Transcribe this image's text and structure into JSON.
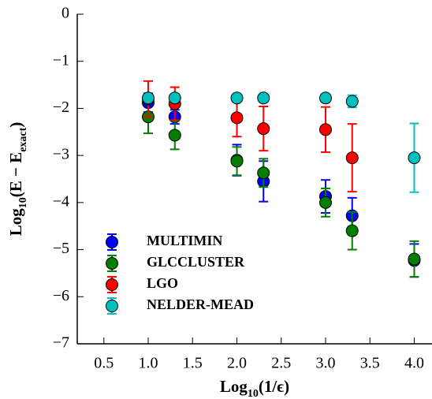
{
  "chart_data": {
    "type": "scatter",
    "xlabel": [
      "Log",
      "10",
      "(1/ϵ)"
    ],
    "ylabel": [
      "Log",
      "10",
      "(E − E",
      "exact",
      ")"
    ],
    "x": [
      1.0,
      1.3,
      2.0,
      2.3,
      3.0,
      3.3,
      4.0
    ],
    "series": [
      {
        "name": "MULTIMIN",
        "color": "#0000ff",
        "values": [
          -1.88,
          -2.18,
          -3.1,
          -3.55,
          -3.87,
          -4.28,
          -5.23
        ],
        "errors": [
          0.2,
          0.15,
          0.33,
          0.43,
          0.35,
          0.38,
          0.35
        ]
      },
      {
        "name": "GLCCLUSTER",
        "color": "#007f00",
        "values": [
          -2.18,
          -2.57,
          -3.12,
          -3.37,
          -4.0,
          -4.6,
          -5.2
        ],
        "errors": [
          0.35,
          0.3,
          0.3,
          0.3,
          0.3,
          0.4,
          0.38
        ]
      },
      {
        "name": "LGO",
        "color": "#ff0000",
        "values": [
          -1.8,
          -1.9,
          -2.2,
          -2.43,
          -2.45,
          -3.05,
          null
        ],
        "errors": [
          0.38,
          0.35,
          0.4,
          0.47,
          0.48,
          0.72,
          null
        ]
      },
      {
        "name": "NELDER-MEAD",
        "color": "#00bfbf",
        "values": [
          -1.78,
          -1.78,
          -1.78,
          -1.78,
          -1.78,
          -1.85,
          -3.05
        ],
        "errors": [
          0.04,
          0.04,
          0.04,
          0.04,
          0.04,
          0.13,
          0.73
        ]
      }
    ],
    "xlim": [
      0.2,
      4.2
    ],
    "ylim": [
      -7,
      0
    ],
    "xticks": [
      0.5,
      {
        "value": 1,
        "label": "1.0"
      },
      1.5,
      {
        "value": 2,
        "label": "2.0"
      },
      2.5,
      {
        "value": 3,
        "label": "3.0"
      },
      3.5,
      {
        "value": 4,
        "label": "4.0"
      }
    ],
    "yticks": [
      0,
      {
        "value": -1,
        "label": "−1"
      },
      {
        "value": -2,
        "label": "−2"
      },
      {
        "value": -3,
        "label": "−3"
      },
      {
        "value": -4,
        "label": "−4"
      },
      {
        "value": -5,
        "label": "−5"
      },
      {
        "value": -6,
        "label": "−6"
      },
      {
        "value": -7,
        "label": "−7"
      }
    ],
    "legend": "lower left"
  }
}
